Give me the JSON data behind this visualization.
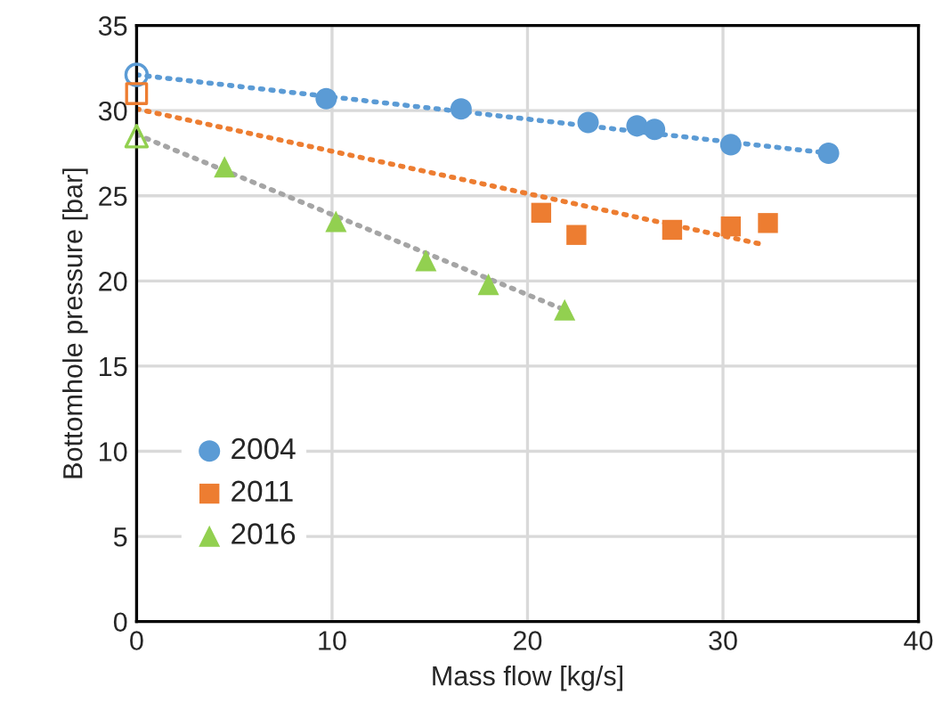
{
  "chart_data": {
    "type": "scatter",
    "xlabel": "Mass flow [kg/s]",
    "ylabel": "Bottomhole pressure [bar]",
    "xlim": [
      0,
      40
    ],
    "xticks": [
      0,
      10,
      20,
      30,
      40
    ],
    "ylim": [
      0,
      35
    ],
    "yticks": [
      0,
      5,
      10,
      15,
      20,
      25,
      30,
      35
    ],
    "grid": true,
    "legend": "bottom left",
    "series": [
      {
        "name": "2004",
        "marker": "circle",
        "color": "#5b9bd5",
        "x": [
          9.7,
          16.6,
          23.1,
          25.6,
          26.5,
          30.4,
          35.4
        ],
        "values": [
          30.7,
          30.1,
          29.3,
          29.1,
          28.9,
          28.0,
          27.5
        ]
      },
      {
        "name": "2011",
        "marker": "square",
        "color": "#ed7d31",
        "x": [
          20.7,
          22.5,
          27.4,
          30.4,
          32.3
        ],
        "values": [
          24.0,
          22.7,
          23.0,
          23.2,
          23.4
        ]
      },
      {
        "name": "2016",
        "marker": "triangle",
        "color": "#92d050",
        "x": [
          4.5,
          10.2,
          14.8,
          18.0,
          21.9
        ],
        "values": [
          26.7,
          23.5,
          21.2,
          19.8,
          18.3
        ]
      },
      {
        "marker": "circle",
        "color": "#5b9bd5",
        "x": [
          0
        ],
        "values": [
          32.1
        ]
      },
      {
        "marker": "square",
        "color": "#ed7d31",
        "x": [
          0
        ],
        "values": [
          31.0
        ]
      },
      {
        "marker": "triangle",
        "color": "#92d050",
        "x": [
          0
        ],
        "values": [
          28.5
        ]
      },
      {
        "type": "line",
        "line_style": "dotted",
        "color": "#5b9bd5",
        "x": [
          0,
          35.4
        ],
        "values": [
          32.1,
          27.5
        ]
      },
      {
        "type": "line",
        "line_style": "dotted",
        "color": "#ed7d31",
        "x": [
          0,
          32.2
        ],
        "values": [
          30.1,
          22.1
        ]
      },
      {
        "type": "line",
        "line_style": "dotted",
        "color": "#a5a5a5",
        "x": [
          0,
          21.9
        ],
        "values": [
          28.6,
          18.3
        ]
      }
    ]
  }
}
